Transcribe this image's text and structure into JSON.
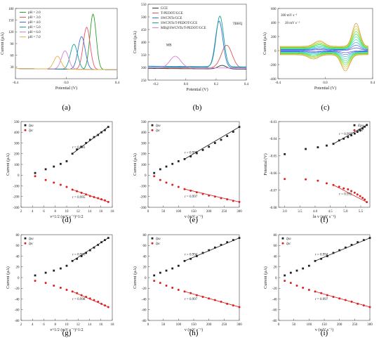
{
  "chart_data": [
    {
      "panel": "(a)",
      "type": "line",
      "xlabel": "Potential (V)",
      "ylabel": "Current (µA)",
      "xlim": [
        -0.4,
        0.4
      ],
      "ylim": [
        0,
        180
      ],
      "xticks": [
        "-0.4",
        "0.0",
        "0.4"
      ],
      "yticks": [
        "30",
        "60",
        "90",
        "120",
        "150",
        "180"
      ],
      "legend_position": "top-left",
      "series": [
        {
          "name": "pH = 2.0",
          "color": "#2ca02c",
          "peak_x": 0.21,
          "peak_y": 168,
          "width": 0.035,
          "baseline": 26
        },
        {
          "name": "pH = 3.0",
          "color": "#e8556a",
          "peak_x": 0.16,
          "peak_y": 134,
          "width": 0.038,
          "baseline": 26
        },
        {
          "name": "pH = 4.0",
          "color": "#3b6fd6",
          "peak_x": 0.12,
          "peak_y": 110,
          "width": 0.04,
          "baseline": 26
        },
        {
          "name": "pH = 5.0",
          "color": "#17a398",
          "peak_x": 0.06,
          "peak_y": 90,
          "width": 0.04,
          "baseline": 26
        },
        {
          "name": "pH = 6.0",
          "color": "#d77fd9",
          "peak_x": -0.01,
          "peak_y": 73,
          "width": 0.04,
          "baseline": 26
        },
        {
          "name": "pH = 7.0",
          "color": "#e0b44a",
          "peak_x": -0.07,
          "peak_y": 59,
          "width": 0.04,
          "baseline": 26
        }
      ]
    },
    {
      "panel": "(b)",
      "type": "line",
      "xlabel": "Potential (V)",
      "ylabel": "Current (µA)",
      "xlim": [
        -0.25,
        0.4
      ],
      "ylim": [
        250,
        550
      ],
      "xticks": [
        "-0.2",
        "0.0",
        "0.2",
        "0.4"
      ],
      "yticks": [
        "250",
        "300",
        "350",
        "400",
        "450",
        "500",
        "550"
      ],
      "legend_position": "top-left",
      "series": [
        {
          "name": "GCE",
          "color": "#333333",
          "peak_x": 0.24,
          "peak_y": 310,
          "width": 0.04,
          "baseline": 296
        },
        {
          "name": "T-PEDOT/GCE",
          "color": "#e0555a",
          "peak_x": 0.27,
          "peak_y": 390,
          "width": 0.05,
          "baseline": 300
        },
        {
          "name": "SWCNTs/GCE",
          "color": "#3b6fd6",
          "peak_x": 0.22,
          "peak_y": 485,
          "width": 0.035,
          "baseline": 302
        },
        {
          "name": "SWCNTs/T-PEDOT/GCE",
          "color": "#17a398",
          "peak_x": 0.225,
          "peak_y": 505,
          "width": 0.035,
          "baseline": 305
        },
        {
          "name": "MB@SWCNTs/T-PEDOT/GCE",
          "color": "#d77fd9",
          "peak_x": -0.07,
          "peak_y": 345,
          "width": 0.05,
          "baseline": 300
        }
      ],
      "annotations": [
        "MB",
        "TBHQ"
      ]
    },
    {
      "panel": "(c)",
      "type": "line",
      "xlabel": "Potential (V)",
      "ylabel": "Current (µA)",
      "xlim": [
        -0.4,
        0.4
      ],
      "ylim": [
        -400,
        600
      ],
      "xticks": [
        "-0.4",
        "0.0",
        "0.4"
      ],
      "yticks": [
        "-400",
        "-200",
        "0",
        "200",
        "400",
        "600"
      ],
      "annotations": [
        "300 mV s⁻¹",
        "20 mV s⁻¹"
      ]
    },
    {
      "panel": "(d)",
      "type": "scatter",
      "xlabel": "v^1/2 (mV s⁻¹)^1/2",
      "ylabel": "Current (µA)",
      "xlim": [
        2,
        18
      ],
      "ylim": [
        -300,
        500
      ],
      "xticks": [
        "2",
        "4",
        "6",
        "8",
        "10",
        "12",
        "14",
        "16",
        "18"
      ],
      "yticks": [
        "-300",
        "-200",
        "-100",
        "0",
        "100",
        "200",
        "300",
        "400",
        "500"
      ],
      "legend": [
        "Ipa",
        "Ipc"
      ],
      "legend_position": "top-left",
      "x": [
        4.47,
        6.32,
        7.75,
        8.94,
        10.0,
        11.0,
        11.8,
        12.6,
        13.4,
        14.1,
        14.8,
        15.5,
        16.1,
        16.7,
        17.3
      ],
      "series": [
        {
          "name": "Ipa",
          "color": "#222222",
          "values": [
            20,
            55,
            80,
            105,
            130,
            200,
            240,
            265,
            300,
            330,
            355,
            375,
            400,
            420,
            450
          ]
        },
        {
          "name": "Ipc",
          "color": "#e02020",
          "values": [
            -10,
            -45,
            -70,
            -90,
            -110,
            -135,
            -150,
            -165,
            -180,
            -195,
            -205,
            -215,
            -225,
            -235,
            -250
          ]
        }
      ],
      "r_labels": [
        "r = 0.993",
        "r = 0.995"
      ]
    },
    {
      "panel": "(e)",
      "type": "scatter",
      "xlabel": "v (mV s⁻¹)",
      "ylabel": "Current (µA)",
      "xlim": [
        0,
        300
      ],
      "ylim": [
        -300,
        500
      ],
      "xticks": [
        "0",
        "50",
        "100",
        "150",
        "200",
        "250",
        "300"
      ],
      "yticks": [
        "-300",
        "-200",
        "-100",
        "0",
        "100",
        "200",
        "300",
        "400",
        "500"
      ],
      "legend": [
        "Ipa",
        "Ipc"
      ],
      "legend_position": "top-left",
      "x": [
        20,
        40,
        60,
        80,
        100,
        120,
        140,
        160,
        180,
        200,
        220,
        240,
        260,
        280,
        300
      ],
      "series": [
        {
          "name": "Ipa",
          "color": "#222222",
          "values": [
            20,
            55,
            80,
            105,
            130,
            150,
            175,
            205,
            235,
            265,
            300,
            330,
            365,
            405,
            450
          ]
        },
        {
          "name": "Ipc",
          "color": "#e02020",
          "values": [
            -10,
            -45,
            -70,
            -90,
            -110,
            -130,
            -145,
            -160,
            -175,
            -190,
            -200,
            -215,
            -225,
            -240,
            -250
          ]
        }
      ],
      "r_labels": [
        "r = 0.999",
        "r = 0.997"
      ]
    },
    {
      "panel": "(f)",
      "type": "scatter",
      "xlabel": "ln v (mV s⁻¹)",
      "ylabel": "Potential (V)",
      "xlim": [
        2.8,
        5.8
      ],
      "ylim": [
        -0.08,
        -0.03
      ],
      "xticks": [
        "3.0",
        "3.5",
        "4.0",
        "4.5",
        "5.0",
        "5.5"
      ],
      "yticks": [
        "-0.08",
        "-0.07",
        "-0.06",
        "-0.05",
        "-0.04",
        "-0.03"
      ],
      "legend": [
        "Epa",
        "Epc"
      ],
      "legend_position": "top-right",
      "x": [
        3.0,
        3.69,
        4.09,
        4.38,
        4.6,
        4.79,
        4.94,
        5.08,
        5.19,
        5.3,
        5.39,
        5.48,
        5.56,
        5.63,
        5.7
      ],
      "series": [
        {
          "name": "Epa",
          "color": "#222222",
          "values": [
            -0.049,
            -0.046,
            -0.045,
            -0.044,
            -0.043,
            -0.041,
            -0.04,
            -0.039,
            -0.038,
            -0.037,
            -0.036,
            -0.035,
            -0.034,
            -0.033,
            -0.032
          ]
        },
        {
          "name": "Epc",
          "color": "#e02020",
          "values": [
            -0.0635,
            -0.0637,
            -0.0645,
            -0.066,
            -0.067,
            -0.068,
            -0.069,
            -0.0695,
            -0.0705,
            -0.0715,
            -0.0725,
            -0.0735,
            -0.0745,
            -0.0755,
            -0.077
          ]
        }
      ],
      "r_labels": [
        "r = 0.997",
        "r = 0.992"
      ]
    },
    {
      "panel": "(g)",
      "type": "scatter",
      "xlabel": "v^1/2 (mV s⁻¹)^1/2",
      "ylabel": "Current (µA)",
      "xlim": [
        2,
        18
      ],
      "ylim": [
        -80,
        80
      ],
      "xticks": [
        "2",
        "4",
        "6",
        "8",
        "10",
        "12",
        "14",
        "16",
        "18"
      ],
      "yticks": [
        "-80",
        "-60",
        "-40",
        "-20",
        "0",
        "20",
        "40",
        "60",
        "80"
      ],
      "legend": [
        "Ipa",
        "Ipc"
      ],
      "legend_position": "top-left",
      "x": [
        4.47,
        6.32,
        7.75,
        8.94,
        10.0,
        11.0,
        11.8,
        12.6,
        13.4,
        14.1,
        14.8,
        15.5,
        16.1,
        16.7,
        17.3
      ],
      "series": [
        {
          "name": "Ipa",
          "color": "#222222",
          "values": [
            4,
            9,
            13,
            17,
            22,
            31,
            35,
            40,
            46,
            51,
            56,
            61,
            66,
            70,
            74
          ]
        },
        {
          "name": "Ipc",
          "color": "#e02020",
          "values": [
            -6,
            -10,
            -15,
            -19,
            -23,
            -26,
            -29,
            -33,
            -36,
            -39,
            -42,
            -45,
            -49,
            -52,
            -55
          ]
        }
      ],
      "r_labels": [
        "r = 0.990",
        "r = 0.998"
      ]
    },
    {
      "panel": "(h)",
      "type": "scatter",
      "xlabel": "v (mV s⁻¹)",
      "ylabel": "Current (µA)",
      "xlim": [
        0,
        300
      ],
      "ylim": [
        -80,
        80
      ],
      "xticks": [
        "0",
        "50",
        "100",
        "150",
        "200",
        "250",
        "300"
      ],
      "yticks": [
        "-80",
        "-60",
        "-40",
        "-20",
        "0",
        "20",
        "40",
        "60",
        "80"
      ],
      "legend": [
        "Ipa",
        "Ipc"
      ],
      "legend_position": "top-left",
      "x": [
        20,
        40,
        60,
        80,
        100,
        120,
        140,
        160,
        180,
        200,
        220,
        240,
        260,
        280,
        300
      ],
      "series": [
        {
          "name": "Ipa",
          "color": "#222222",
          "values": [
            4,
            9,
            13,
            17,
            22,
            31,
            35,
            40,
            46,
            51,
            56,
            61,
            66,
            70,
            74
          ]
        },
        {
          "name": "Ipc",
          "color": "#e02020",
          "values": [
            -6,
            -10,
            -15,
            -19,
            -23,
            -26,
            -29,
            -33,
            -36,
            -39,
            -42,
            -45,
            -49,
            -52,
            -55
          ]
        }
      ],
      "r_labels": [
        "r = 0.994",
        "r = 0.997"
      ]
    },
    {
      "panel": "(i)",
      "type": "scatter",
      "xlabel": "v (mV s⁻¹)",
      "ylabel": "Current (µA)",
      "xlim": [
        0,
        300
      ],
      "ylim": [
        -80,
        80
      ],
      "xticks": [
        "0",
        "50",
        "100",
        "150",
        "200",
        "250",
        "300"
      ],
      "yticks": [
        "-80",
        "-60",
        "-40",
        "-20",
        "0",
        "20",
        "40",
        "60",
        "80"
      ],
      "legend": [
        "Ipa",
        "Ipc"
      ],
      "legend_position": "top-left",
      "x": [
        20,
        40,
        60,
        80,
        100,
        120,
        140,
        160,
        180,
        200,
        220,
        240,
        260,
        280,
        300
      ],
      "series": [
        {
          "name": "Ipa",
          "color": "#222222",
          "values": [
            4,
            9,
            13,
            17,
            22,
            31,
            35,
            40,
            46,
            51,
            56,
            61,
            66,
            70,
            74
          ]
        },
        {
          "name": "Ipc",
          "color": "#e02020",
          "values": [
            -6,
            -10,
            -15,
            -19,
            -23,
            -26,
            -29,
            -33,
            -36,
            -39,
            -42,
            -45,
            -49,
            -52,
            -55
          ]
        }
      ],
      "r_labels": [
        "r = 0.994",
        "r = 0.997"
      ]
    }
  ]
}
